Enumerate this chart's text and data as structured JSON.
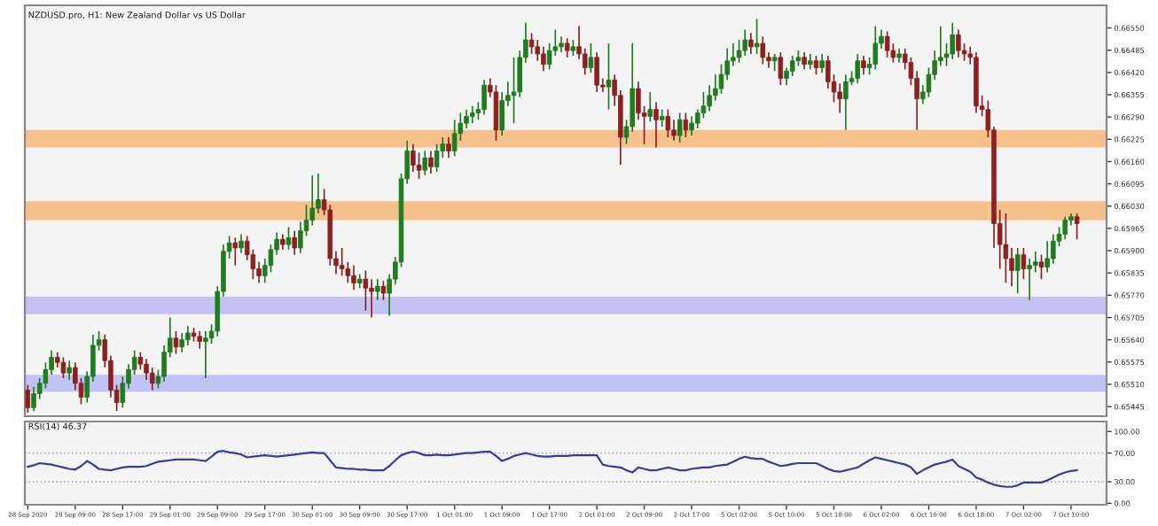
{
  "chart_data": [
    {
      "type": "candlestick",
      "title": "NZDUSD.pro, H1: New Zealand Dollar vs US Dollar",
      "tick_labels": "y",
      "categories": [
        null,
        null,
        null,
        null,
        null,
        null,
        null,
        null,
        null,
        null,
        null,
        null,
        null,
        null,
        null,
        null,
        null,
        null,
        null,
        null,
        null,
        null,
        null,
        null,
        null,
        null,
        null,
        null,
        null,
        null,
        null,
        null,
        null,
        null,
        null,
        null,
        null,
        null,
        null,
        null,
        null,
        null,
        null,
        null,
        null,
        null,
        null,
        null,
        null,
        null,
        null,
        null,
        null,
        null,
        null,
        null,
        null,
        null,
        null,
        null,
        null,
        null,
        null,
        null,
        null,
        null,
        null,
        null,
        null,
        null,
        null,
        null,
        null,
        null,
        null,
        null,
        null,
        null,
        null,
        null,
        null,
        null,
        null,
        null,
        null,
        null,
        null,
        null,
        null,
        null,
        null,
        null,
        null,
        null,
        null,
        null,
        null,
        null,
        null,
        null,
        null,
        null,
        null,
        null,
        null,
        null,
        null,
        null,
        null,
        null,
        null,
        null,
        null,
        null,
        null,
        null,
        null,
        null,
        null,
        null,
        null,
        null,
        null,
        null,
        null,
        null,
        null,
        null,
        null,
        null,
        null,
        null,
        null,
        null,
        null,
        null,
        null,
        null,
        null,
        null,
        null,
        null,
        null,
        null,
        null,
        null,
        null,
        null,
        null,
        null,
        null,
        null,
        null,
        null,
        null,
        null,
        null,
        null,
        null,
        null,
        null,
        null,
        null,
        null,
        null,
        null,
        null,
        null,
        null,
        null,
        null,
        null,
        null,
        null,
        null,
        null,
        null,
        null
      ],
      "ohlc": [
        [
          0.65493,
          0.65508,
          0.65427,
          0.65442
        ],
        [
          0.65442,
          0.65503,
          0.65432,
          0.65483
        ],
        [
          0.65483,
          0.65528,
          0.65467,
          0.65513
        ],
        [
          0.65513,
          0.65574,
          0.65498,
          0.65553
        ],
        [
          0.65553,
          0.65609,
          0.65538,
          0.65589
        ],
        [
          0.65589,
          0.65604,
          0.65559,
          0.65574
        ],
        [
          0.65574,
          0.65589,
          0.65528,
          0.65543
        ],
        [
          0.65543,
          0.65579,
          0.65523,
          0.65559
        ],
        [
          0.65559,
          0.65574,
          0.65493,
          0.65513
        ],
        [
          0.65513,
          0.65528,
          0.65452,
          0.65472
        ],
        [
          0.65472,
          0.65548,
          0.65457,
          0.65533
        ],
        [
          0.65533,
          0.65655,
          0.65518,
          0.65624
        ],
        [
          0.65624,
          0.65665,
          0.65609,
          0.6564
        ],
        [
          0.6564,
          0.65655,
          0.65559,
          0.65579
        ],
        [
          0.65579,
          0.65594,
          0.65472,
          0.65493
        ],
        [
          0.65493,
          0.65508,
          0.65432,
          0.65457
        ],
        [
          0.65457,
          0.65533,
          0.65442,
          0.65513
        ],
        [
          0.65513,
          0.65569,
          0.65498,
          0.65553
        ],
        [
          0.65553,
          0.65609,
          0.65538,
          0.65589
        ],
        [
          0.65589,
          0.65604,
          0.65553,
          0.65569
        ],
        [
          0.65569,
          0.65584,
          0.65523,
          0.65543
        ],
        [
          0.65543,
          0.65559,
          0.65493,
          0.65513
        ],
        [
          0.65513,
          0.65553,
          0.65498,
          0.65533
        ],
        [
          0.65533,
          0.65624,
          0.65518,
          0.65604
        ],
        [
          0.65604,
          0.65705,
          0.65589,
          0.65645
        ],
        [
          0.65645,
          0.65665,
          0.65599,
          0.65619
        ],
        [
          0.65619,
          0.6566,
          0.65604,
          0.6564
        ],
        [
          0.6564,
          0.6568,
          0.65624,
          0.6566
        ],
        [
          0.6566,
          0.65675,
          0.65635,
          0.6565
        ],
        [
          0.6565,
          0.65665,
          0.65614,
          0.65635
        ],
        [
          0.65635,
          0.65665,
          0.65528,
          0.65645
        ],
        [
          0.65645,
          0.65685,
          0.65629,
          0.65665
        ],
        [
          0.65665,
          0.65796,
          0.6565,
          0.65781
        ],
        [
          0.65781,
          0.65918,
          0.65766,
          0.65898
        ],
        [
          0.65898,
          0.65943,
          0.65877,
          0.65923
        ],
        [
          0.65923,
          0.65938,
          0.65857,
          0.65908
        ],
        [
          0.65908,
          0.65948,
          0.65893,
          0.65928
        ],
        [
          0.65928,
          0.65943,
          0.65872,
          0.65888
        ],
        [
          0.65888,
          0.65903,
          0.65817,
          0.65847
        ],
        [
          0.65847,
          0.65867,
          0.65806,
          0.65827
        ],
        [
          0.65827,
          0.65877,
          0.65806,
          0.65857
        ],
        [
          0.65857,
          0.65918,
          0.65837,
          0.65903
        ],
        [
          0.65903,
          0.65953,
          0.65888,
          0.65933
        ],
        [
          0.65933,
          0.65948,
          0.65903,
          0.65918
        ],
        [
          0.65918,
          0.65969,
          0.65903,
          0.65938
        ],
        [
          0.65938,
          0.65958,
          0.65888,
          0.65908
        ],
        [
          0.65908,
          0.65984,
          0.65893,
          0.65958
        ],
        [
          0.65958,
          0.66034,
          0.65943,
          0.65989
        ],
        [
          0.65989,
          0.6612,
          0.65974,
          0.66024
        ],
        [
          0.66024,
          0.66125,
          0.66009,
          0.66049
        ],
        [
          0.66049,
          0.6608,
          0.66004,
          0.66019
        ],
        [
          0.66019,
          0.66034,
          0.65857,
          0.65877
        ],
        [
          0.65877,
          0.65898,
          0.65832,
          0.65857
        ],
        [
          0.65857,
          0.65908,
          0.65827,
          0.65847
        ],
        [
          0.65847,
          0.65867,
          0.65806,
          0.65827
        ],
        [
          0.65827,
          0.65857,
          0.65786,
          0.65806
        ],
        [
          0.65806,
          0.65832,
          0.65791,
          0.65817
        ],
        [
          0.65817,
          0.65842,
          0.65725,
          0.65791
        ],
        [
          0.65791,
          0.65817,
          0.65705,
          0.65781
        ],
        [
          0.65781,
          0.65817,
          0.65756,
          0.65796
        ],
        [
          0.65796,
          0.65812,
          0.65756,
          0.65776
        ],
        [
          0.65776,
          0.65832,
          0.6571,
          0.65817
        ],
        [
          0.65817,
          0.65882,
          0.65801,
          0.65867
        ],
        [
          0.65867,
          0.66125,
          0.65852,
          0.6611
        ],
        [
          0.6611,
          0.66221,
          0.66095,
          0.66191
        ],
        [
          0.66191,
          0.66211,
          0.6613,
          0.6615
        ],
        [
          0.6615,
          0.66186,
          0.6611,
          0.66135
        ],
        [
          0.66135,
          0.66191,
          0.6612,
          0.66171
        ],
        [
          0.66171,
          0.66191,
          0.66125,
          0.66145
        ],
        [
          0.66145,
          0.66211,
          0.6613,
          0.66191
        ],
        [
          0.66191,
          0.66231,
          0.66171,
          0.66211
        ],
        [
          0.66211,
          0.66231,
          0.66171,
          0.66191
        ],
        [
          0.66191,
          0.66282,
          0.66176,
          0.66242
        ],
        [
          0.66242,
          0.66302,
          0.66221,
          0.66272
        ],
        [
          0.66272,
          0.66312,
          0.66257,
          0.66292
        ],
        [
          0.66292,
          0.66322,
          0.66272,
          0.66302
        ],
        [
          0.66302,
          0.66333,
          0.66282,
          0.66312
        ],
        [
          0.66312,
          0.66398,
          0.66297,
          0.66383
        ],
        [
          0.66383,
          0.66403,
          0.66348,
          0.66363
        ],
        [
          0.66363,
          0.66383,
          0.66221,
          0.66252
        ],
        [
          0.66252,
          0.66363,
          0.66236,
          0.66338
        ],
        [
          0.66338,
          0.66393,
          0.66322,
          0.66353
        ],
        [
          0.66353,
          0.66464,
          0.66272,
          0.66363
        ],
        [
          0.66363,
          0.66484,
          0.66348,
          0.66464
        ],
        [
          0.66464,
          0.66565,
          0.66449,
          0.66515
        ],
        [
          0.66515,
          0.66535,
          0.66474,
          0.66495
        ],
        [
          0.66495,
          0.66515,
          0.66454,
          0.66474
        ],
        [
          0.66474,
          0.66495,
          0.66424,
          0.66444
        ],
        [
          0.66444,
          0.66505,
          0.66429,
          0.66484
        ],
        [
          0.66484,
          0.66545,
          0.66469,
          0.66495
        ],
        [
          0.66495,
          0.66525,
          0.66479,
          0.66505
        ],
        [
          0.66505,
          0.6652,
          0.66464,
          0.66484
        ],
        [
          0.66484,
          0.66515,
          0.66469,
          0.66495
        ],
        [
          0.66495,
          0.66555,
          0.66459,
          0.66474
        ],
        [
          0.66474,
          0.6649,
          0.66414,
          0.66434
        ],
        [
          0.66434,
          0.66505,
          0.66419,
          0.66464
        ],
        [
          0.66464,
          0.66479,
          0.66363,
          0.66383
        ],
        [
          0.66383,
          0.66403,
          0.66363,
          0.66378
        ],
        [
          0.66378,
          0.66505,
          0.66312,
          0.66398
        ],
        [
          0.66398,
          0.66414,
          0.66322,
          0.66353
        ],
        [
          0.66353,
          0.66368,
          0.6615,
          0.66231
        ],
        [
          0.66231,
          0.66282,
          0.66211,
          0.66262
        ],
        [
          0.66262,
          0.66505,
          0.66247,
          0.66373
        ],
        [
          0.66373,
          0.66393,
          0.66282,
          0.66302
        ],
        [
          0.66302,
          0.66322,
          0.66211,
          0.66292
        ],
        [
          0.66292,
          0.66363,
          0.66277,
          0.66312
        ],
        [
          0.66312,
          0.66333,
          0.66201,
          0.66282
        ],
        [
          0.66282,
          0.66312,
          0.66262,
          0.66292
        ],
        [
          0.66292,
          0.66312,
          0.66231,
          0.66252
        ],
        [
          0.66252,
          0.66282,
          0.66221,
          0.66236
        ],
        [
          0.66236,
          0.66302,
          0.66216,
          0.66282
        ],
        [
          0.66282,
          0.66302,
          0.66231,
          0.66252
        ],
        [
          0.66252,
          0.66292,
          0.66236,
          0.66272
        ],
        [
          0.66272,
          0.66312,
          0.66257,
          0.66302
        ],
        [
          0.66302,
          0.66363,
          0.66287,
          0.66322
        ],
        [
          0.66322,
          0.66383,
          0.66307,
          0.66353
        ],
        [
          0.66353,
          0.66414,
          0.66338,
          0.66373
        ],
        [
          0.66373,
          0.66444,
          0.66358,
          0.66414
        ],
        [
          0.66414,
          0.6649,
          0.66398,
          0.66454
        ],
        [
          0.66454,
          0.66505,
          0.66439,
          0.66464
        ],
        [
          0.66464,
          0.66515,
          0.66449,
          0.66484
        ],
        [
          0.66484,
          0.66545,
          0.66469,
          0.66515
        ],
        [
          0.66515,
          0.66535,
          0.66474,
          0.66495
        ],
        [
          0.66495,
          0.66576,
          0.66474,
          0.66505
        ],
        [
          0.66505,
          0.66525,
          0.66444,
          0.66464
        ],
        [
          0.66464,
          0.66479,
          0.66434,
          0.66454
        ],
        [
          0.66454,
          0.66474,
          0.66424,
          0.66464
        ],
        [
          0.66464,
          0.66479,
          0.66383,
          0.66403
        ],
        [
          0.66403,
          0.66434,
          0.66383,
          0.66424
        ],
        [
          0.66424,
          0.66469,
          0.66409,
          0.66454
        ],
        [
          0.66454,
          0.66484,
          0.66439,
          0.66464
        ],
        [
          0.66464,
          0.66479,
          0.66429,
          0.66444
        ],
        [
          0.66444,
          0.66474,
          0.66429,
          0.66454
        ],
        [
          0.66454,
          0.66469,
          0.66414,
          0.66434
        ],
        [
          0.66434,
          0.66474,
          0.66419,
          0.66454
        ],
        [
          0.66454,
          0.66469,
          0.66373,
          0.66393
        ],
        [
          0.66393,
          0.66414,
          0.66333,
          0.66363
        ],
        [
          0.66363,
          0.66388,
          0.66302,
          0.66343
        ],
        [
          0.66343,
          0.66414,
          0.66252,
          0.66393
        ],
        [
          0.66393,
          0.66424,
          0.66383,
          0.66403
        ],
        [
          0.66403,
          0.66474,
          0.66388,
          0.66454
        ],
        [
          0.66454,
          0.66469,
          0.66414,
          0.66434
        ],
        [
          0.66434,
          0.66464,
          0.66414,
          0.66444
        ],
        [
          0.66444,
          0.66555,
          0.66429,
          0.66505
        ],
        [
          0.66505,
          0.66545,
          0.6649,
          0.66525
        ],
        [
          0.66525,
          0.6654,
          0.66464,
          0.66484
        ],
        [
          0.66484,
          0.66505,
          0.66449,
          0.66464
        ],
        [
          0.66464,
          0.6649,
          0.66449,
          0.66474
        ],
        [
          0.66474,
          0.6649,
          0.66429,
          0.66449
        ],
        [
          0.66449,
          0.66464,
          0.66383,
          0.66403
        ],
        [
          0.66403,
          0.66424,
          0.66252,
          0.66343
        ],
        [
          0.66343,
          0.66383,
          0.66328,
          0.66363
        ],
        [
          0.66363,
          0.66434,
          0.66348,
          0.66414
        ],
        [
          0.66414,
          0.66484,
          0.66398,
          0.66454
        ],
        [
          0.66454,
          0.66555,
          0.66439,
          0.66464
        ],
        [
          0.66464,
          0.66505,
          0.66439,
          0.66474
        ],
        [
          0.66474,
          0.66565,
          0.66459,
          0.6653
        ],
        [
          0.6653,
          0.66545,
          0.66464,
          0.66484
        ],
        [
          0.66484,
          0.66505,
          0.66454,
          0.66474
        ],
        [
          0.66474,
          0.66495,
          0.66444,
          0.66464
        ],
        [
          0.66464,
          0.66479,
          0.66302,
          0.66322
        ],
        [
          0.66322,
          0.66353,
          0.66292,
          0.66312
        ],
        [
          0.66312,
          0.66338,
          0.66231,
          0.66252
        ],
        [
          0.66252,
          0.66262,
          0.65908,
          0.65979
        ],
        [
          0.65979,
          0.66019,
          0.65847,
          0.65918
        ],
        [
          0.65918,
          0.66009,
          0.65806,
          0.65877
        ],
        [
          0.65877,
          0.65908,
          0.65796,
          0.65842
        ],
        [
          0.65842,
          0.65908,
          0.65776,
          0.65888
        ],
        [
          0.65888,
          0.65908,
          0.65817,
          0.65847
        ],
        [
          0.65847,
          0.65877,
          0.65756,
          0.65857
        ],
        [
          0.65857,
          0.65898,
          0.65837,
          0.65867
        ],
        [
          0.65867,
          0.65888,
          0.65817,
          0.65852
        ],
        [
          0.65852,
          0.65928,
          0.65837,
          0.65877
        ],
        [
          0.65877,
          0.65948,
          0.65862,
          0.65928
        ],
        [
          0.65928,
          0.65969,
          0.65913,
          0.65948
        ],
        [
          0.65948,
          0.65999,
          0.65933,
          0.65989
        ],
        [
          0.65989,
          0.66009,
          0.65974,
          0.65999
        ],
        [
          0.65999,
          0.66009,
          0.65933,
          0.65979
        ]
      ],
      "colors": [
        "#8c2020",
        "#1e7b1e",
        "#1e7b1e",
        "#1e7b1e",
        "#1e7b1e",
        "#8c2020",
        "#8c2020",
        "#1e7b1e",
        "#8c2020",
        "#8c2020",
        "#1e7b1e",
        "#1e7b1e",
        "#1e7b1e",
        "#8c2020",
        "#8c2020",
        "#8c2020",
        "#1e7b1e",
        "#1e7b1e",
        "#1e7b1e",
        "#8c2020",
        "#8c2020",
        "#8c2020",
        "#1e7b1e",
        "#1e7b1e",
        "#1e7b1e",
        "#8c2020",
        "#1e7b1e",
        "#1e7b1e",
        "#8c2020",
        "#8c2020",
        "#1e7b1e",
        "#1e7b1e",
        "#1e7b1e",
        "#1e7b1e",
        "#1e7b1e",
        "#8c2020",
        "#1e7b1e",
        "#8c2020",
        "#8c2020",
        "#8c2020",
        "#1e7b1e",
        "#1e7b1e",
        "#1e7b1e",
        "#8c2020",
        "#1e7b1e",
        "#8c2020",
        "#1e7b1e",
        "#1e7b1e",
        "#1e7b1e",
        "#1e7b1e",
        "#8c2020",
        "#8c2020",
        "#8c2020",
        "#8c2020",
        "#8c2020",
        "#8c2020",
        "#1e7b1e",
        "#8c2020",
        "#8c2020",
        "#1e7b1e",
        "#8c2020",
        "#1e7b1e",
        "#1e7b1e",
        "#1e7b1e",
        "#1e7b1e",
        "#8c2020",
        "#8c2020",
        "#1e7b1e",
        "#8c2020",
        "#1e7b1e",
        "#1e7b1e",
        "#8c2020",
        "#1e7b1e",
        "#1e7b1e",
        "#1e7b1e",
        "#1e7b1e",
        "#1e7b1e",
        "#1e7b1e",
        "#8c2020",
        "#8c2020",
        "#1e7b1e",
        "#1e7b1e",
        "#1e7b1e",
        "#1e7b1e",
        "#1e7b1e",
        "#8c2020",
        "#8c2020",
        "#8c2020",
        "#1e7b1e",
        "#1e7b1e",
        "#1e7b1e",
        "#8c2020",
        "#1e7b1e",
        "#8c2020",
        "#8c2020",
        "#1e7b1e",
        "#8c2020",
        "#8c2020",
        "#1e7b1e",
        "#8c2020",
        "#8c2020",
        "#1e7b1e",
        "#1e7b1e",
        "#8c2020",
        "#8c2020",
        "#1e7b1e",
        "#8c2020",
        "#1e7b1e",
        "#8c2020",
        "#8c2020",
        "#1e7b1e",
        "#8c2020",
        "#1e7b1e",
        "#1e7b1e",
        "#1e7b1e",
        "#1e7b1e",
        "#1e7b1e",
        "#1e7b1e",
        "#1e7b1e",
        "#1e7b1e",
        "#1e7b1e",
        "#1e7b1e",
        "#8c2020",
        "#1e7b1e",
        "#8c2020",
        "#8c2020",
        "#1e7b1e",
        "#8c2020",
        "#1e7b1e",
        "#1e7b1e",
        "#1e7b1e",
        "#8c2020",
        "#1e7b1e",
        "#8c2020",
        "#1e7b1e",
        "#8c2020",
        "#8c2020",
        "#8c2020",
        "#1e7b1e",
        "#1e7b1e",
        "#1e7b1e",
        "#8c2020",
        "#1e7b1e",
        "#1e7b1e",
        "#1e7b1e",
        "#8c2020",
        "#8c2020",
        "#1e7b1e",
        "#8c2020",
        "#8c2020",
        "#8c2020",
        "#1e7b1e",
        "#1e7b1e",
        "#1e7b1e",
        "#1e7b1e",
        "#1e7b1e",
        "#1e7b1e",
        "#8c2020",
        "#8c2020",
        "#8c2020",
        "#8c2020",
        "#8c2020",
        "#8c2020",
        "#8c2020",
        "#8c2020",
        "#8c2020",
        "#8c2020",
        "#1e7b1e",
        "#8c2020",
        "#1e7b1e",
        "#1e7b1e",
        "#8c2020",
        "#1e7b1e",
        "#1e7b1e",
        "#1e7b1e",
        "#1e7b1e",
        "#1e7b1e",
        "#8c2020"
      ],
      "ylim": [
        0.65417,
        0.66616
      ],
      "yticks": [
        {
          "value": 0.6655,
          "label": "0.66550"
        },
        {
          "value": 0.66485,
          "label": "0.66485"
        },
        {
          "value": 0.6642,
          "label": "0.66420"
        },
        {
          "value": 0.66355,
          "label": "0.66355"
        },
        {
          "value": 0.6629,
          "label": "0.66290"
        },
        {
          "value": 0.66225,
          "label": "0.66225"
        },
        {
          "value": 0.6616,
          "label": "0.66160"
        },
        {
          "value": 0.66095,
          "label": "0.66095"
        },
        {
          "value": 0.6603,
          "label": "0.66030"
        },
        {
          "value": 0.65965,
          "label": "0.65965"
        },
        {
          "value": 0.659,
          "label": "0.65900"
        },
        {
          "value": 0.65835,
          "label": "0.65835"
        },
        {
          "value": 0.6577,
          "label": "0.65770"
        },
        {
          "value": 0.65705,
          "label": "0.65705"
        },
        {
          "value": 0.6564,
          "label": "0.65640"
        },
        {
          "value": 0.65575,
          "label": "0.65575"
        },
        {
          "value": 0.6551,
          "label": "0.65510"
        },
        {
          "value": 0.65445,
          "label": "0.65445"
        }
      ],
      "bands": [
        {
          "axis": "y",
          "from": 0.66201,
          "to": 0.66252,
          "color": "#f7b77a"
        },
        {
          "axis": "y",
          "from": 0.65989,
          "to": 0.66044,
          "color": "#f7b77a"
        },
        {
          "axis": "y",
          "from": 0.65715,
          "to": 0.65766,
          "color": "#b9b9f5"
        },
        {
          "axis": "y",
          "from": 0.65488,
          "to": 0.65538,
          "color": "#b9b9f5"
        }
      ]
    },
    {
      "type": "line",
      "title": "RSI(14) 46.37",
      "categories": [
        "28 Sep 2020",
        null,
        null,
        null,
        null,
        null,
        null,
        null,
        "28 Sep 09:00",
        null,
        null,
        null,
        null,
        null,
        null,
        null,
        "28 Sep 17:00",
        null,
        null,
        null,
        null,
        null,
        null,
        null,
        "29 Sep 01:00",
        null,
        null,
        null,
        null,
        null,
        null,
        null,
        "29 Sep 09:00",
        null,
        null,
        null,
        null,
        null,
        null,
        null,
        "29 Sep 17:00",
        null,
        null,
        null,
        null,
        null,
        null,
        null,
        "30 Sep 01:00",
        null,
        null,
        null,
        null,
        null,
        null,
        null,
        "30 Sep 09:00",
        null,
        null,
        null,
        null,
        null,
        null,
        null,
        "30 Sep 17:00",
        null,
        null,
        null,
        null,
        null,
        null,
        null,
        "1 Oct 01:00",
        null,
        null,
        null,
        null,
        null,
        null,
        null,
        "1 Oct 09:00",
        null,
        null,
        null,
        null,
        null,
        null,
        null,
        "1 Oct 17:00",
        null,
        null,
        null,
        null,
        null,
        null,
        null,
        "2 Oct 01:00",
        null,
        null,
        null,
        null,
        null,
        null,
        null,
        "2 Oct 09:00",
        null,
        null,
        null,
        null,
        null,
        null,
        null,
        "2 Oct 17:00",
        null,
        null,
        null,
        null,
        null,
        null,
        null,
        "5 Oct 02:00",
        null,
        null,
        null,
        null,
        null,
        null,
        null,
        "5 Oct 10:00",
        null,
        null,
        null,
        null,
        null,
        null,
        null,
        "5 Oct 18:00",
        null,
        null,
        null,
        null,
        null,
        null,
        null,
        "6 Oct 02:00",
        null,
        null,
        null,
        null,
        null,
        null,
        null,
        "6 Oct 10:00",
        null,
        null,
        null,
        null,
        null,
        null,
        null,
        "6 Oct 18:00",
        null,
        null,
        null,
        null,
        null,
        null,
        null,
        "7 Oct 02:00",
        null,
        null,
        null,
        null,
        null,
        null,
        null,
        "7 Oct 10:00",
        null
      ],
      "series": [
        {
          "color": "#3b3b9c",
          "values": [
            51,
            53,
            56,
            55,
            54,
            52,
            50,
            48,
            47,
            52,
            59,
            54,
            48,
            47,
            46,
            48,
            50,
            51,
            51,
            51,
            52,
            55,
            58,
            59,
            60,
            61,
            61,
            61,
            61,
            60,
            59,
            65,
            72,
            73,
            71,
            70,
            68,
            64,
            65,
            66,
            67,
            66,
            65,
            66,
            67,
            68,
            69,
            70,
            71,
            70,
            70,
            60,
            50,
            49,
            48,
            48,
            47,
            47,
            46,
            46,
            46,
            52,
            60,
            67,
            70,
            72,
            70,
            67,
            67,
            68,
            67,
            67,
            68,
            69,
            70,
            70,
            71,
            72,
            72,
            66,
            59,
            62,
            66,
            68,
            70,
            68,
            66,
            65,
            65,
            66,
            66,
            66,
            67,
            67,
            67,
            67,
            67,
            54,
            52,
            51,
            50,
            46,
            43,
            50,
            48,
            46,
            46,
            48,
            50,
            48,
            46,
            46,
            48,
            49,
            50,
            50,
            52,
            53,
            54,
            58,
            62,
            65,
            63,
            62,
            62,
            58,
            55,
            52,
            53,
            55,
            56,
            56,
            56,
            56,
            52,
            48,
            45,
            44,
            46,
            48,
            50,
            55,
            60,
            64,
            62,
            60,
            58,
            56,
            54,
            50,
            41,
            46,
            50,
            54,
            56,
            58,
            61,
            52,
            48,
            44,
            36,
            33,
            29,
            26,
            24,
            23,
            23,
            25,
            29,
            29,
            29,
            29,
            32,
            36,
            40,
            43,
            45,
            46
          ]
        }
      ],
      "ylim": [
        -2,
        114
      ],
      "yticks": [
        {
          "value": 100,
          "label": "100.00"
        },
        {
          "value": 70,
          "label": "70.00"
        },
        {
          "value": 30,
          "label": "30.00"
        },
        {
          "value": 0,
          "label": "0.00"
        }
      ],
      "ref_lines": [
        {
          "axis": "y",
          "value": 70,
          "color": "#b0b0b0",
          "line_style": "dotted"
        },
        {
          "axis": "y",
          "value": 30,
          "color": "#b0b0b0",
          "line_style": "dotted"
        }
      ]
    }
  ]
}
